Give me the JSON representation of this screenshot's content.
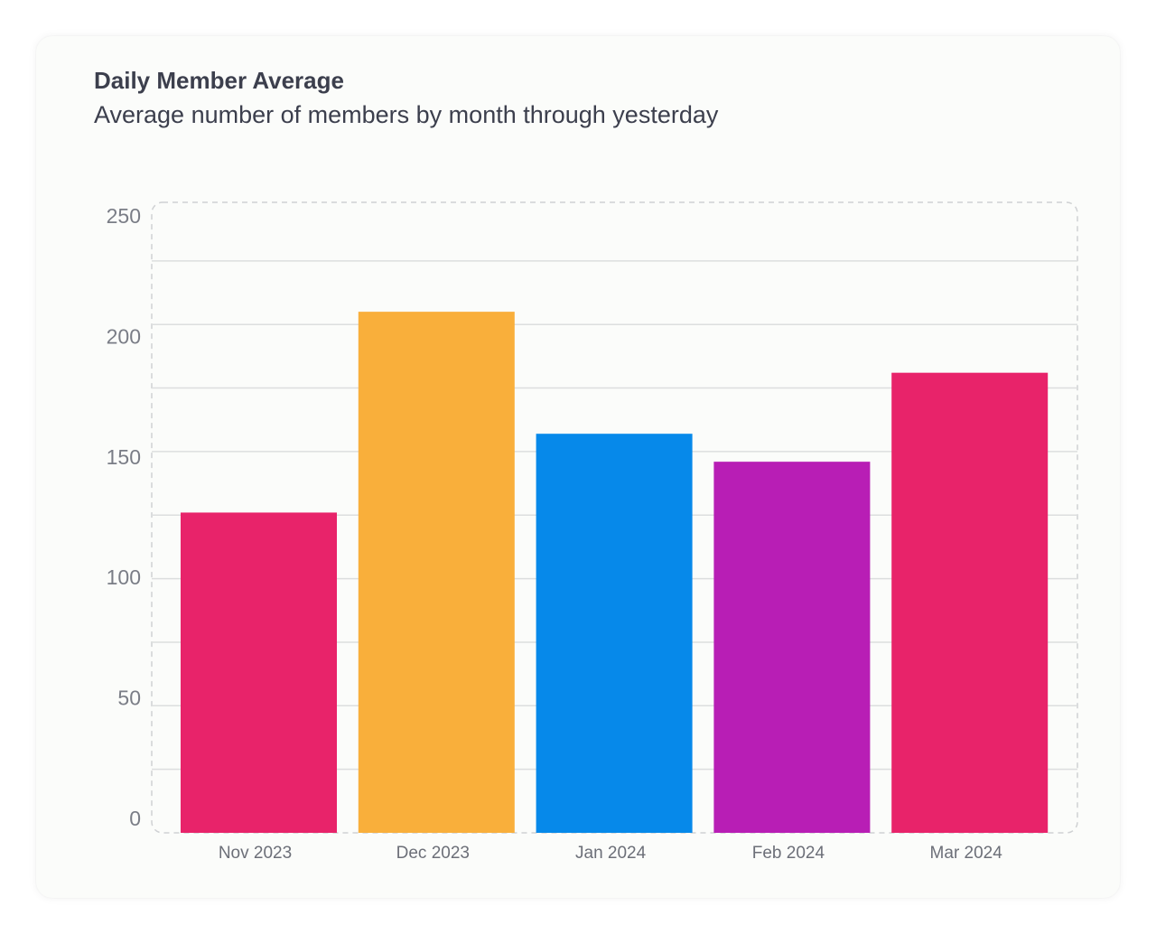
{
  "card": {
    "title": "Daily Member Average",
    "subtitle": "Average number of members by month through yesterday"
  },
  "chart_data": {
    "type": "bar",
    "title": "Daily Member Average",
    "subtitle": "Average number of members by month through yesterday",
    "categories": [
      "Nov 2023",
      "Dec 2023",
      "Jan 2024",
      "Feb 2024",
      "Mar 2024"
    ],
    "values": [
      126,
      205,
      157,
      146,
      181
    ],
    "colors": [
      "#e8236a",
      "#f9af3b",
      "#0689ea",
      "#b81eb5",
      "#e8236a"
    ],
    "xlabel": "",
    "ylabel": "",
    "ylim": [
      0,
      250
    ],
    "yticks": [
      0,
      50,
      100,
      150,
      200,
      250
    ],
    "grid": true,
    "legend": "none"
  }
}
